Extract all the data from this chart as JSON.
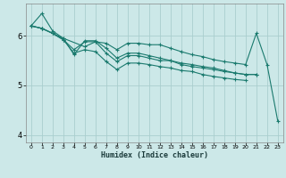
{
  "xlabel": "Humidex (Indice chaleur)",
  "bg_color": "#cce8e8",
  "grid_color": "#aacece",
  "line_color": "#1a7a6e",
  "xlim": [
    -0.5,
    23.5
  ],
  "ylim": [
    3.85,
    6.65
  ],
  "yticks": [
    4,
    5,
    6
  ],
  "xticks": [
    0,
    1,
    2,
    3,
    4,
    5,
    6,
    7,
    8,
    9,
    10,
    11,
    12,
    13,
    14,
    15,
    16,
    17,
    18,
    19,
    20,
    21,
    22,
    23
  ],
  "series": [
    {
      "x": [
        0,
        1,
        2,
        3,
        5,
        6,
        7,
        8,
        9,
        10,
        11,
        12,
        13,
        14,
        15,
        16,
        17,
        18,
        19,
        20,
        21,
        22,
        23
      ],
      "y": [
        6.2,
        6.45,
        6.1,
        5.95,
        5.78,
        5.88,
        5.85,
        5.72,
        5.85,
        5.85,
        5.82,
        5.82,
        5.75,
        5.68,
        5.62,
        5.58,
        5.52,
        5.48,
        5.45,
        5.42,
        6.05,
        5.42,
        4.28
      ]
    },
    {
      "x": [
        0,
        1,
        2,
        3,
        4,
        5,
        6,
        7,
        8,
        9,
        10,
        11,
        12,
        13,
        14,
        15,
        16,
        17,
        18,
        19,
        20,
        21
      ],
      "y": [
        6.2,
        6.15,
        6.05,
        5.92,
        5.72,
        5.88,
        5.88,
        5.65,
        5.48,
        5.6,
        5.6,
        5.55,
        5.5,
        5.5,
        5.42,
        5.38,
        5.35,
        5.32,
        5.28,
        5.25,
        5.22,
        5.22
      ]
    },
    {
      "x": [
        0,
        1,
        2,
        3,
        4,
        5,
        6,
        7,
        8,
        9,
        10,
        11,
        12,
        13,
        14,
        15,
        16,
        17,
        18,
        19,
        20,
        21
      ],
      "y": [
        6.2,
        6.15,
        6.05,
        5.95,
        5.62,
        5.9,
        5.9,
        5.75,
        5.55,
        5.65,
        5.65,
        5.6,
        5.55,
        5.5,
        5.45,
        5.42,
        5.38,
        5.35,
        5.3,
        5.25,
        5.22,
        5.22
      ]
    },
    {
      "x": [
        0,
        1,
        2,
        3,
        4,
        5,
        6,
        7,
        8,
        9,
        10,
        11,
        12,
        13,
        14,
        15,
        16,
        17,
        18,
        19,
        20
      ],
      "y": [
        6.2,
        6.15,
        6.05,
        5.92,
        5.65,
        5.72,
        5.68,
        5.48,
        5.32,
        5.45,
        5.45,
        5.42,
        5.38,
        5.35,
        5.3,
        5.28,
        5.22,
        5.18,
        5.15,
        5.12,
        5.1
      ]
    }
  ]
}
